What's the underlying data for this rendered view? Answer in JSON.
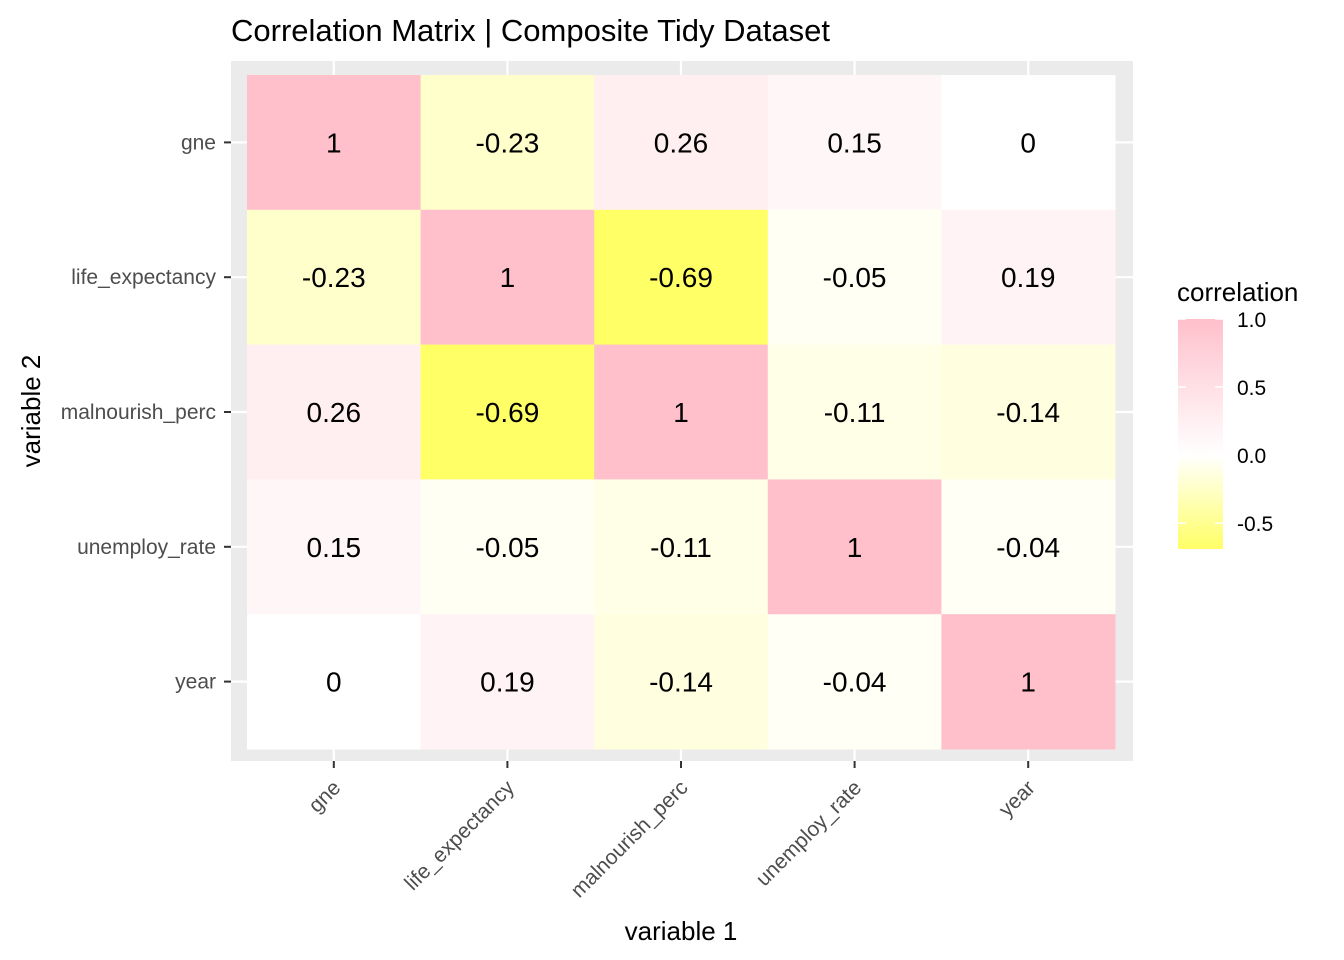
{
  "chart_data": {
    "type": "heatmap",
    "title": "Correlation Matrix | Composite Tidy Dataset",
    "xlabel": "variable 1",
    "ylabel": "variable 2",
    "x_categories": [
      "gne",
      "life_expectancy",
      "malnourish_perc",
      "unemploy_rate",
      "year"
    ],
    "y_categories": [
      "gne",
      "life_expectancy",
      "malnourish_perc",
      "unemploy_rate",
      "year"
    ],
    "values": [
      [
        1,
        -0.23,
        0.26,
        0.15,
        0
      ],
      [
        -0.23,
        1,
        -0.69,
        -0.05,
        0.19
      ],
      [
        0.26,
        -0.69,
        1,
        -0.11,
        -0.14
      ],
      [
        0.15,
        -0.05,
        -0.11,
        1,
        -0.04
      ],
      [
        0,
        0.19,
        -0.14,
        -0.04,
        1
      ]
    ],
    "legend": {
      "title": "correlation",
      "position": "right",
      "ticks": [
        1.0,
        0.5,
        0.0,
        -0.5
      ],
      "tick_labels": [
        "1.0",
        "0.5",
        "0.0",
        "-0.5"
      ],
      "range": [
        -0.69,
        1
      ]
    },
    "colors": {
      "high": "#FFC0CB",
      "mid": "#FFFFFF",
      "low": "#FFFF66",
      "panel_background": "#EBEBEB",
      "grid": "#FFFFFF"
    },
    "grid": true
  }
}
